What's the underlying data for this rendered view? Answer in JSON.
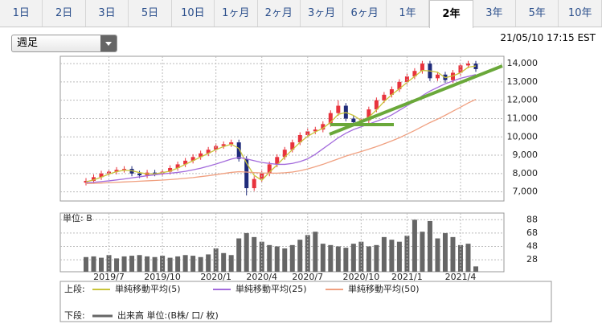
{
  "tabs": [
    "1日",
    "2日",
    "3日",
    "5日",
    "10日",
    "1ヶ月",
    "2ヶ月",
    "3ヶ月",
    "6ヶ月",
    "1年",
    "2年",
    "3年",
    "5年",
    "10年"
  ],
  "selected_tab": "2年",
  "period_select": "週足",
  "timestamp": "21/05/10 17:15 EST",
  "legend": {
    "upper": "上段:",
    "lower": "下段:"
  },
  "chart_data": [
    {
      "type": "candlestick",
      "up_color": "#e8333d",
      "down_color": "#1f2b7a",
      "grid": true,
      "ylim": [
        6500,
        14400
      ],
      "yticks": [
        {
          "value": 7000,
          "label": "7,000"
        },
        {
          "value": 8000,
          "label": "8,000"
        },
        {
          "value": 9000,
          "label": "9,000"
        },
        {
          "value": 10000,
          "label": "10,000"
        },
        {
          "value": 11000,
          "label": "11,000"
        },
        {
          "value": 12000,
          "label": "12,000"
        },
        {
          "value": 13000,
          "label": "13,000"
        },
        {
          "value": 14000,
          "label": "14,000"
        }
      ],
      "open": [
        7500,
        7600,
        7800,
        8000,
        8100,
        8200,
        8250,
        8000,
        7900,
        8050,
        8000,
        8100,
        8300,
        8500,
        8700,
        8900,
        9100,
        9300,
        9500,
        9600,
        9700,
        8800,
        7200,
        7700,
        8000,
        8500,
        8900,
        9300,
        9700,
        10100,
        10300,
        10400,
        10700,
        11300,
        11700,
        11000,
        10800,
        10900,
        11500,
        12000,
        12300,
        12600,
        13000,
        13300,
        13600,
        14000,
        13200,
        13400,
        13100,
        13500,
        13900,
        14000
      ],
      "high": [
        7750,
        7950,
        8150,
        8250,
        8350,
        8400,
        8400,
        8150,
        8200,
        8200,
        8250,
        8450,
        8650,
        8850,
        9050,
        9250,
        9450,
        9650,
        9750,
        9850,
        9850,
        8950,
        7850,
        8150,
        8650,
        9050,
        9450,
        9850,
        10250,
        10450,
        10550,
        10850,
        11450,
        12000,
        11850,
        11150,
        11050,
        11650,
        12150,
        12450,
        12750,
        13150,
        13450,
        13750,
        14150,
        14150,
        13550,
        13550,
        13650,
        14050,
        14150,
        14150
      ],
      "low": [
        7350,
        7450,
        7650,
        7850,
        7950,
        8050,
        7850,
        7750,
        7750,
        7850,
        7850,
        7950,
        8150,
        8350,
        8550,
        8750,
        8950,
        9150,
        9350,
        9450,
        8650,
        6800,
        7050,
        7550,
        7850,
        8350,
        8750,
        9150,
        9550,
        9950,
        10150,
        10250,
        10550,
        11150,
        10850,
        10650,
        10650,
        10750,
        11350,
        11850,
        12150,
        12450,
        12850,
        13150,
        13450,
        13050,
        13050,
        12950,
        12950,
        13350,
        13750,
        13550
      ],
      "close": [
        7600,
        7800,
        8000,
        8100,
        8200,
        8250,
        8000,
        7900,
        8050,
        8000,
        8100,
        8300,
        8500,
        8700,
        8900,
        9100,
        9300,
        9500,
        9600,
        9700,
        8800,
        7200,
        7700,
        8000,
        8500,
        8900,
        9300,
        9700,
        10100,
        10300,
        10400,
        10700,
        11300,
        11700,
        11000,
        10800,
        10900,
        11500,
        12000,
        12300,
        12600,
        13000,
        13300,
        13600,
        14000,
        13200,
        13400,
        13100,
        13500,
        13900,
        14000,
        13700
      ],
      "series": [
        {
          "name": "単純移動平均(5)",
          "color": "#c9c43a",
          "values": [
            7550,
            7650,
            7800,
            7970,
            8100,
            8180,
            8150,
            8050,
            7980,
            7980,
            8050,
            8130,
            8300,
            8500,
            8700,
            8900,
            9100,
            9300,
            9470,
            9600,
            9370,
            8570,
            7900,
            7630,
            8070,
            8470,
            8900,
            9300,
            9700,
            10030,
            10270,
            10470,
            10800,
            11230,
            11330,
            11170,
            10900,
            11070,
            11470,
            11930,
            12300,
            12630,
            12970,
            13300,
            13630,
            13600,
            13530,
            13230,
            13330,
            13500,
            13800,
            13870
          ]
        },
        {
          "name": "単純移動平均(25)",
          "color": "#a36bdc",
          "values": [
            7500,
            7520,
            7560,
            7600,
            7650,
            7700,
            7760,
            7820,
            7880,
            7930,
            7980,
            8020,
            8060,
            8120,
            8200,
            8290,
            8400,
            8520,
            8650,
            8790,
            8880,
            8800,
            8700,
            8600,
            8550,
            8500,
            8500,
            8550,
            8650,
            8800,
            9050,
            9350,
            9650,
            9950,
            10200,
            10400,
            10550,
            10700,
            10850,
            11000,
            11200,
            11450,
            11700,
            11950,
            12250,
            12500,
            12700,
            12900,
            13050,
            13200,
            13300,
            13400
          ]
        },
        {
          "name": "単純移動平均(50)",
          "color": "#f0a080",
          "values": [
            7450,
            7460,
            7480,
            7500,
            7520,
            7540,
            7560,
            7580,
            7600,
            7620,
            7640,
            7670,
            7700,
            7740,
            7780,
            7830,
            7880,
            7940,
            8000,
            8060,
            8100,
            8080,
            8050,
            8030,
            8020,
            8020,
            8040,
            8080,
            8150,
            8250,
            8370,
            8500,
            8650,
            8800,
            8950,
            9080,
            9200,
            9330,
            9470,
            9620,
            9780,
            9950,
            10150,
            10350,
            10570,
            10780,
            10970,
            11180,
            11400,
            11620,
            11850,
            12050
          ]
        }
      ]
    },
    {
      "type": "bar",
      "ylabel": "単位: B",
      "grid": true,
      "categories": [
        null,
        null,
        null,
        "2019/7",
        null,
        null,
        null,
        null,
        null,
        null,
        "2019/10",
        null,
        null,
        null,
        null,
        null,
        null,
        "2020/1",
        null,
        null,
        null,
        null,
        null,
        "2020/4",
        null,
        null,
        null,
        null,
        null,
        "2020/7",
        null,
        null,
        null,
        null,
        null,
        null,
        "2020/10",
        null,
        null,
        null,
        null,
        null,
        "2021/1",
        null,
        null,
        null,
        null,
        null,
        null,
        "2021/4",
        null,
        null
      ],
      "ylim": [
        10,
        98
      ],
      "yticks": [
        28,
        48,
        68,
        88
      ],
      "series": [
        {
          "name": "出来高 単位:(B株/ 口/ 枚)",
          "color": "#666666",
          "values": [
            32,
            33,
            31,
            35,
            30,
            33,
            34,
            35,
            33,
            32,
            34,
            31,
            33,
            35,
            34,
            32,
            36,
            45,
            38,
            35,
            60,
            68,
            62,
            55,
            50,
            48,
            45,
            50,
            58,
            65,
            70,
            52,
            50,
            48,
            46,
            52,
            55,
            48,
            50,
            62,
            58,
            55,
            64,
            88,
            70,
            86,
            60,
            68,
            62,
            50,
            52,
            18
          ]
        }
      ]
    }
  ]
}
